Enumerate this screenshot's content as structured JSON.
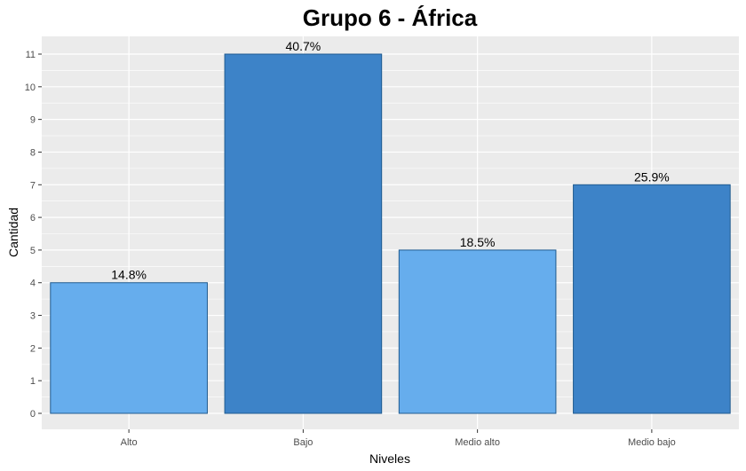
{
  "chart_data": {
    "type": "bar",
    "title": "Grupo 6 - África",
    "xlabel": "Niveles",
    "ylabel": "Cantidad",
    "categories": [
      "Alto",
      "Bajo",
      "Medio alto",
      "Medio bajo"
    ],
    "values": [
      4,
      11,
      5,
      7
    ],
    "data_labels": [
      "14.8%",
      "40.7%",
      "18.5%",
      "25.9%"
    ],
    "bar_colors": [
      "#66ADED",
      "#3D83C8",
      "#66ADED",
      "#3D83C8"
    ],
    "bar_border_color": "#1F5A8F",
    "ylim": [
      0,
      11.6
    ],
    "yticks": [
      0,
      1,
      2,
      3,
      4,
      5,
      6,
      7,
      8,
      9,
      10,
      11
    ],
    "grid": true,
    "panel_background": "#EBEBEB",
    "grid_color": "#FFFFFF"
  }
}
